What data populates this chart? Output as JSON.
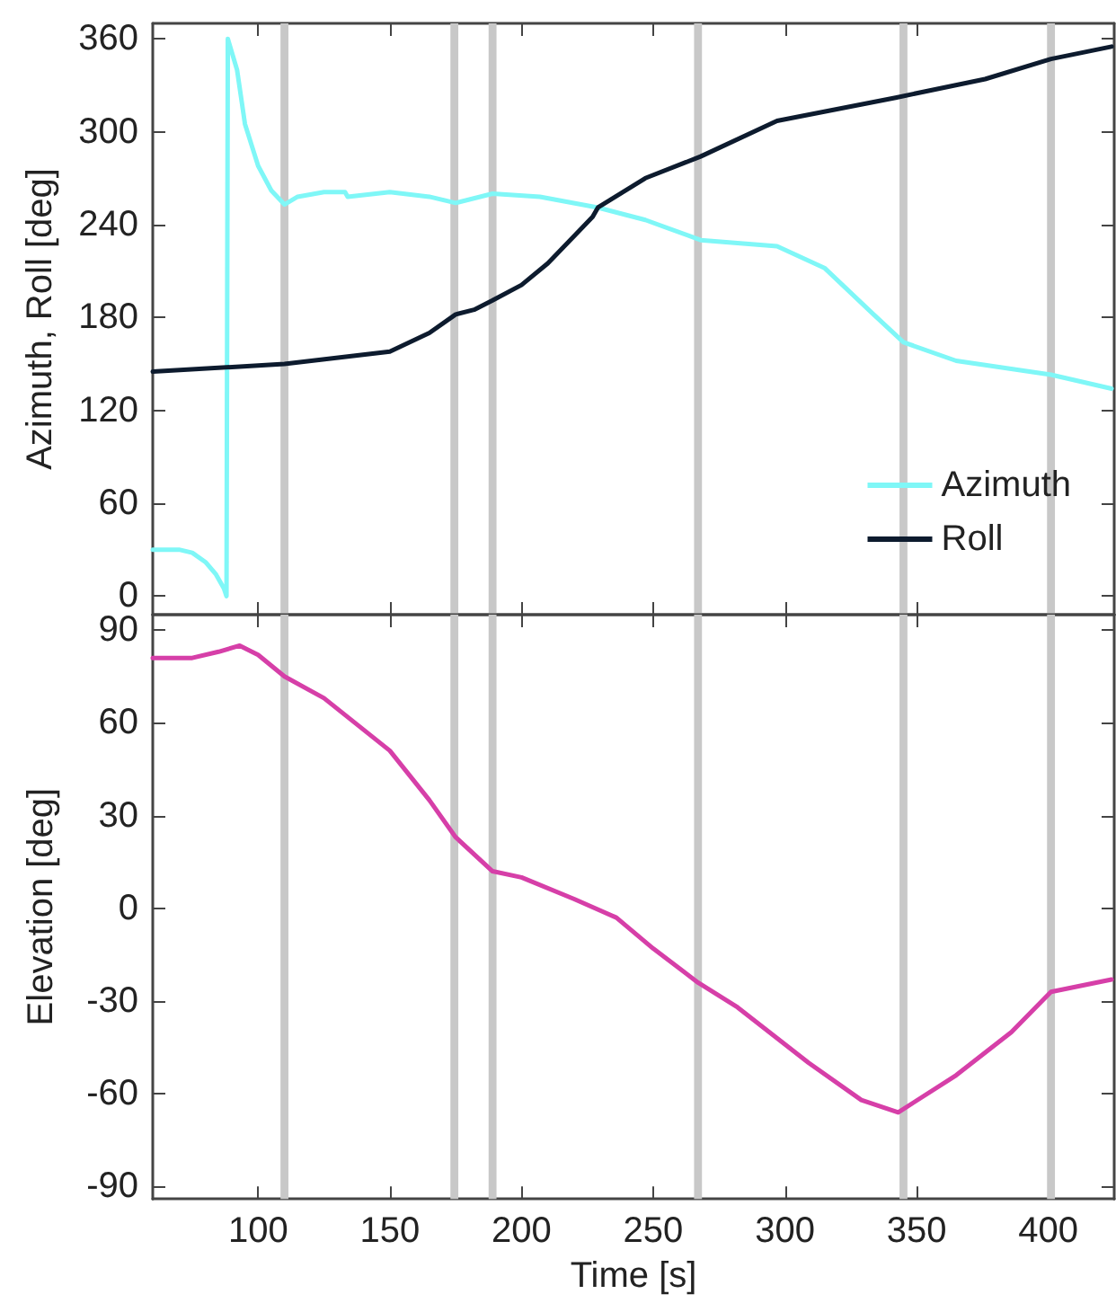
{
  "chart_data": [
    {
      "type": "line",
      "ylabel": "Azimuth, Roll [deg]",
      "xlim": [
        60,
        425
      ],
      "xticks": [
        100,
        150,
        200,
        250,
        300,
        350,
        400
      ],
      "ylim": [
        -12,
        370
      ],
      "yticks": [
        0,
        60,
        120,
        180,
        240,
        300,
        360
      ],
      "tick_labels": "y",
      "legend": "bottom right",
      "marker": "none",
      "line_style": "solid",
      "series": [
        {
          "name": "Azimuth",
          "color": "#7ff7f7",
          "x": [
            60,
            70,
            75,
            80,
            84,
            87,
            88,
            88.5,
            92,
            95,
            100,
            105,
            110,
            115,
            125,
            133,
            134,
            150,
            165,
            175,
            189,
            207,
            229,
            247,
            268,
            297,
            315,
            333,
            345,
            365,
            401,
            424
          ],
          "values": [
            30,
            30,
            28,
            22,
            14,
            5,
            0,
            360,
            340,
            305,
            278,
            262,
            253,
            258,
            261,
            261,
            258,
            261,
            258,
            254,
            260,
            258,
            251,
            243,
            230,
            226,
            212,
            183,
            164,
            152,
            143,
            134
          ]
        },
        {
          "name": "Roll",
          "color": "#0d1b2e",
          "x": [
            60,
            110,
            150,
            165,
            175,
            182,
            189,
            200,
            210,
            227,
            229,
            247,
            268,
            297,
            342,
            376,
            401,
            424
          ],
          "values": [
            145,
            150,
            158,
            170,
            182,
            185,
            191,
            201,
            215,
            245,
            251,
            270,
            284,
            307,
            322,
            334,
            347,
            355
          ]
        }
      ],
      "bands": [
        {
          "axis": "x",
          "from": 108.5,
          "to": 111.5,
          "color": "#c8c8c8"
        },
        {
          "axis": "x",
          "from": 173,
          "to": 176,
          "color": "#c8c8c8"
        },
        {
          "axis": "x",
          "from": 187.5,
          "to": 190.5,
          "color": "#c8c8c8"
        },
        {
          "axis": "x",
          "from": 265.5,
          "to": 268.5,
          "color": "#c8c8c8"
        },
        {
          "axis": "x",
          "from": 343.5,
          "to": 346.5,
          "color": "#c8c8c8"
        },
        {
          "axis": "x",
          "from": 399.5,
          "to": 402.5,
          "color": "#c8c8c8"
        }
      ]
    },
    {
      "type": "line",
      "xlabel": "Time [s]",
      "ylabel": "Elevation [deg]",
      "xlim": [
        60,
        425
      ],
      "xticks": [
        100,
        150,
        200,
        250,
        300,
        350,
        400
      ],
      "ylim": [
        -94,
        95
      ],
      "yticks": [
        -90,
        -60,
        -30,
        0,
        30,
        60,
        90
      ],
      "marker": "none",
      "line_style": "solid",
      "series": [
        {
          "color": "#d63fa8",
          "x": [
            60,
            75,
            85,
            93,
            100,
            110,
            125,
            150,
            165,
            175,
            189,
            200,
            220,
            236,
            250,
            267,
            282,
            309,
            329,
            343,
            365,
            386,
            401,
            424
          ],
          "values": [
            81,
            81,
            83,
            85,
            82,
            75,
            68,
            51,
            35,
            23,
            12,
            10,
            3,
            -3,
            -13,
            -24,
            -32,
            -50,
            -62,
            -66,
            -54,
            -40,
            -27,
            -23
          ]
        }
      ],
      "bands": [
        {
          "axis": "x",
          "from": 108.5,
          "to": 111.5,
          "color": "#c8c8c8"
        },
        {
          "axis": "x",
          "from": 173,
          "to": 176,
          "color": "#c8c8c8"
        },
        {
          "axis": "x",
          "from": 187.5,
          "to": 190.5,
          "color": "#c8c8c8"
        },
        {
          "axis": "x",
          "from": 265.5,
          "to": 268.5,
          "color": "#c8c8c8"
        },
        {
          "axis": "x",
          "from": 343.5,
          "to": 346.5,
          "color": "#c8c8c8"
        },
        {
          "axis": "x",
          "from": 399.5,
          "to": 402.5,
          "color": "#c8c8c8"
        }
      ]
    }
  ]
}
